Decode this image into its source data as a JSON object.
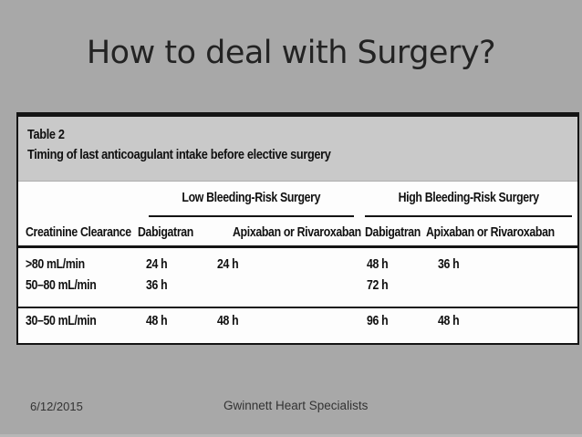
{
  "slide": {
    "title": "How to deal with Surgery?",
    "footer": {
      "date": "6/12/2015",
      "organization": "Gwinnett Heart Specialists"
    }
  },
  "table": {
    "label": "Table 2",
    "caption": "Timing of last anticoagulant intake before elective surgery",
    "group_headers": {
      "low": "Low Bleeding-Risk Surgery",
      "high": "High Bleeding-Risk Surgery"
    },
    "columns": [
      "Creatinine Clearance",
      "Dabigatran",
      "Apixaban or Rivaroxaban",
      "Dabigatran",
      "Apixaban or Rivaroxaban"
    ],
    "rows": [
      {
        "label": ">80 mL/min",
        "cells": [
          "24 h",
          "24 h",
          "48 h",
          "36 h"
        ]
      },
      {
        "label": "50–80 mL/min",
        "cells": [
          "36 h",
          "",
          "72 h",
          ""
        ]
      },
      {
        "label": "30–50 mL/min",
        "cells": [
          "48 h",
          "48 h",
          "96 h",
          "48 h"
        ]
      }
    ]
  },
  "colors": {
    "slide_background": "#a8a8a8",
    "table_caption_band": "#c9c9c9",
    "table_body_background": "#fdfdfd",
    "table_rule_black": "#141414",
    "title_text": "#232323",
    "footer_text": "#333333"
  }
}
